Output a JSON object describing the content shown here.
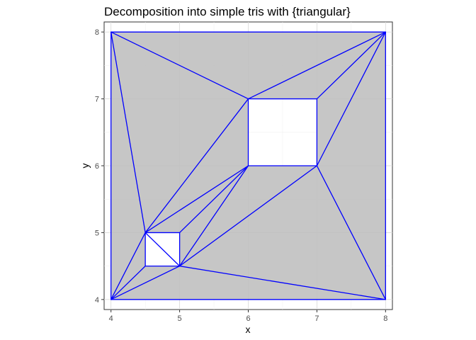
{
  "chart_data": {
    "type": "polygon-triangulation",
    "title": "Decomposition into simple tris with {triangular}",
    "xlabel": "x",
    "ylabel": "y",
    "xlim": [
      3.9,
      8.1
    ],
    "ylim": [
      3.85,
      8.15
    ],
    "x_ticks": [
      4,
      5,
      6,
      7,
      8
    ],
    "y_ticks": [
      4,
      5,
      6,
      7,
      8
    ],
    "x_tick_labels": [
      "4",
      "5",
      "6",
      "7",
      "8"
    ],
    "y_tick_labels": [
      "4",
      "5",
      "6",
      "7",
      "8"
    ],
    "grid": true,
    "panel_background": "#ebebeb",
    "fill_color": "#bebebe",
    "edge_color": "#0000ff",
    "outer_polygon": [
      [
        4,
        4
      ],
      [
        8,
        4
      ],
      [
        8,
        8
      ],
      [
        4,
        8
      ]
    ],
    "holes": [
      [
        [
          4.5,
          4.5
        ],
        [
          5,
          4.5
        ],
        [
          5,
          5
        ],
        [
          4.5,
          5
        ]
      ],
      [
        [
          6,
          6
        ],
        [
          7,
          6
        ],
        [
          7,
          7
        ],
        [
          6,
          7
        ]
      ]
    ],
    "edges": [
      [
        [
          4,
          8
        ],
        [
          6,
          7
        ]
      ],
      [
        [
          4,
          8
        ],
        [
          4.5,
          5
        ]
      ],
      [
        [
          4,
          8
        ],
        [
          4,
          4
        ]
      ],
      [
        [
          4,
          8
        ],
        [
          8,
          8
        ]
      ],
      [
        [
          8,
          8
        ],
        [
          6,
          7
        ]
      ],
      [
        [
          8,
          8
        ],
        [
          7,
          7
        ]
      ],
      [
        [
          8,
          8
        ],
        [
          7,
          6
        ]
      ],
      [
        [
          8,
          8
        ],
        [
          8,
          4
        ]
      ],
      [
        [
          6,
          7
        ],
        [
          4.5,
          5
        ]
      ],
      [
        [
          6,
          6
        ],
        [
          4.5,
          5
        ]
      ],
      [
        [
          6,
          6
        ],
        [
          5,
          5
        ]
      ],
      [
        [
          6,
          6
        ],
        [
          5,
          4.5
        ]
      ],
      [
        [
          7,
          6
        ],
        [
          5,
          4.5
        ]
      ],
      [
        [
          7,
          6
        ],
        [
          8,
          4
        ]
      ],
      [
        [
          5,
          4.5
        ],
        [
          8,
          4
        ]
      ],
      [
        [
          5,
          4.5
        ],
        [
          4,
          4
        ]
      ],
      [
        [
          4.5,
          5
        ],
        [
          4,
          4
        ]
      ],
      [
        [
          4.5,
          4.5
        ],
        [
          4,
          4
        ]
      ],
      [
        [
          4,
          4
        ],
        [
          8,
          4
        ]
      ],
      [
        [
          4.5,
          5
        ],
        [
          5,
          4.5
        ]
      ]
    ]
  }
}
